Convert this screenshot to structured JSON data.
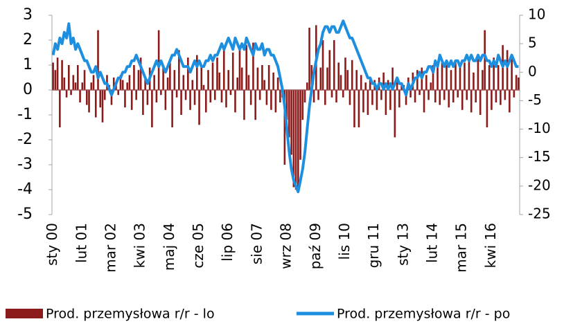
{
  "chart_data": {
    "type": "bar_line",
    "categories": [
      "sty 00",
      null,
      null,
      null,
      null,
      null,
      null,
      null,
      null,
      null,
      null,
      null,
      null,
      "lut 01",
      null,
      null,
      null,
      null,
      null,
      null,
      null,
      null,
      null,
      null,
      null,
      null,
      "mar 02",
      null,
      null,
      null,
      null,
      null,
      null,
      null,
      null,
      null,
      null,
      null,
      null,
      "kwi 03",
      null,
      null,
      null,
      null,
      null,
      null,
      null,
      null,
      null,
      null,
      null,
      null,
      "maj 04",
      null,
      null,
      null,
      null,
      null,
      null,
      null,
      null,
      null,
      null,
      null,
      null,
      "cze 05",
      null,
      null,
      null,
      null,
      null,
      null,
      null,
      null,
      null,
      null,
      null,
      null,
      "lip 06",
      null,
      null,
      null,
      null,
      null,
      null,
      null,
      null,
      null,
      null,
      null,
      null,
      "sie 07",
      null,
      null,
      null,
      null,
      null,
      null,
      null,
      null,
      null,
      null,
      null,
      null,
      "wrz 08",
      null,
      null,
      null,
      null,
      null,
      null,
      null,
      null,
      null,
      null,
      null,
      null,
      "paź 09",
      null,
      null,
      null,
      null,
      null,
      null,
      null,
      null,
      null,
      null,
      null,
      null,
      "lis 10",
      null,
      null,
      null,
      null,
      null,
      null,
      null,
      null,
      null,
      null,
      null,
      null,
      "gru 11",
      null,
      null,
      null,
      null,
      null,
      null,
      null,
      null,
      null,
      null,
      null,
      null,
      "sty 13",
      null,
      null,
      null,
      null,
      null,
      null,
      null,
      null,
      null,
      null,
      null,
      null,
      "lut 14",
      null,
      null,
      null,
      null,
      null,
      null,
      null,
      null,
      null,
      null,
      null,
      null,
      "mar 15",
      null,
      null,
      null,
      null,
      null,
      null,
      null,
      null,
      null,
      null,
      null,
      null,
      "kwi 16",
      null,
      null,
      null,
      null,
      null,
      null,
      null,
      null,
      null,
      null,
      null,
      null
    ],
    "series": [
      {
        "name": "Prod. przemysłowa r/r - lo",
        "color": "#8b1a1a",
        "kind": "bar",
        "values": [
          1.1,
          0.8,
          1.3,
          -1.5,
          1.2,
          0.5,
          -0.3,
          1.0,
          -0.2,
          0.6,
          0.3,
          1.0,
          -0.5,
          0.3,
          0.8,
          -0.6,
          -0.9,
          0.3,
          0.6,
          -1.1,
          2.4,
          -0.7,
          -1.3,
          -0.4,
          0.6,
          0.2,
          -0.6,
          0.5,
          0.3,
          -0.2,
          0.6,
          0.4,
          -0.7,
          0.3,
          0.6,
          -0.8,
          1.0,
          -0.4,
          0.8,
          1.3,
          -1.0,
          0.5,
          -0.6,
          0.9,
          -1.5,
          0.6,
          -0.5,
          2.4,
          -0.2,
          1.0,
          -0.8,
          0.5,
          1.2,
          -1.5,
          0.8,
          -0.3,
          1.6,
          -1.0,
          0.6,
          -0.4,
          1.3,
          -0.8,
          0.4,
          -0.6,
          1.4,
          -1.4,
          0.9,
          0.2,
          -0.9,
          0.8,
          -0.5,
          1.1,
          -0.4,
          1.3,
          0.7,
          -0.5,
          1.6,
          -0.7,
          0.8,
          -0.2,
          1.5,
          -0.9,
          0.5,
          1.7,
          0.9,
          -1.2,
          1.8,
          0.6,
          -0.6,
          1.9,
          -1.2,
          0.9,
          -0.4,
          1.0,
          0.4,
          -0.6,
          1.0,
          -0.8,
          0.7,
          -0.9,
          0.5,
          -0.5,
          -0.3,
          -3.0,
          -1.2,
          -1.9,
          -2.6,
          -3.9,
          -4.0,
          -3.9,
          -2.8,
          -1.2,
          -0.5,
          0.3,
          2.5,
          1.0,
          -0.5,
          2.6,
          -0.4,
          0.9,
          2.0,
          -0.6,
          0.9,
          1.6,
          -0.3,
          2.0,
          -0.5,
          1.1,
          0.6,
          -0.3,
          1.3,
          0.8,
          -0.6,
          1.2,
          -1.5,
          0.8,
          -1.5,
          0.6,
          -0.9,
          0.3,
          -1.0,
          0.5,
          -0.6,
          0.4,
          -0.8,
          0.5,
          -0.4,
          0.7,
          -1.0,
          0.4,
          -0.8,
          0.9,
          -1.9,
          0.4,
          -0.7,
          0.3,
          0.2,
          -0.6,
          0.5,
          -0.3,
          0.7,
          -0.5,
          0.8,
          -0.2,
          0.9,
          -0.9,
          0.6,
          -0.4,
          0.3,
          1.0,
          -0.5,
          0.9,
          -0.6,
          1.1,
          -0.4,
          1.0,
          -0.7,
          0.8,
          -0.5,
          1.2,
          -0.3,
          0.9,
          -0.8,
          1.1,
          -0.4,
          1.2,
          -0.9,
          0.7,
          -0.5,
          1.3,
          -1.0,
          0.8,
          2.4,
          -1.5,
          1.0,
          -0.8,
          1.3,
          -0.5,
          1.0,
          -0.6,
          1.8,
          -0.4,
          1.6,
          -0.9,
          1.4,
          -0.3,
          0.6,
          0.5
        ]
      },
      {
        "name": "Prod. przemysłowa r/r - po",
        "color": "#1e8fdf",
        "kind": "line",
        "axis": "y2",
        "values": [
          3,
          5,
          4,
          6,
          5,
          7,
          6,
          8.5,
          5,
          6,
          4,
          5,
          4,
          3,
          2,
          2,
          1,
          0,
          0,
          1,
          -1,
          0,
          -1,
          -2,
          -2,
          -3,
          -4,
          -3,
          -2,
          -1,
          -1,
          0,
          0,
          1,
          1,
          2,
          2,
          3,
          2,
          1,
          0,
          -1,
          -2,
          -1,
          0,
          1,
          2,
          1,
          2,
          1,
          0,
          1,
          2,
          3,
          3,
          4,
          3,
          2,
          1,
          1,
          1,
          0,
          1,
          2,
          1,
          2,
          1,
          1,
          2,
          2,
          3,
          2,
          3,
          3,
          4,
          5,
          4,
          5,
          6,
          5,
          4,
          6,
          5,
          4,
          5,
          4,
          6,
          5,
          4,
          3,
          5,
          4,
          4,
          5,
          3,
          4,
          4,
          3,
          3,
          2,
          1,
          -1,
          -3,
          -6,
          -10,
          -14,
          -17,
          -19,
          -20,
          -21,
          -19,
          -17,
          -14,
          -10,
          -6,
          -3,
          0,
          2,
          4,
          5,
          7,
          8,
          8,
          7,
          8,
          8,
          7,
          7,
          8,
          9,
          8,
          7,
          6,
          6,
          5,
          4,
          3,
          2,
          1,
          0,
          -1,
          -1,
          -2,
          -2,
          -3,
          -2,
          -2,
          -3,
          -2,
          -3,
          -2,
          -3,
          -2,
          -1,
          -2,
          -2,
          -3,
          -4,
          -2,
          -3,
          -2,
          -1,
          -1,
          0,
          -1,
          0,
          0,
          1,
          1,
          0,
          2,
          1,
          3,
          2,
          1,
          2,
          1,
          2,
          1,
          2,
          2,
          1,
          2,
          2,
          3,
          2,
          3,
          2,
          2,
          3,
          2,
          3,
          3,
          2,
          2,
          1,
          2,
          1,
          3,
          2,
          1,
          2,
          1,
          2,
          3,
          2,
          1,
          1
        ]
      }
    ],
    "ylim": [
      -5,
      3
    ],
    "yticks": [
      -5,
      -4,
      -3,
      -2,
      -1,
      0,
      1,
      2,
      3
    ],
    "y2lim": [
      -25,
      10
    ],
    "y2ticks": [
      -25,
      -20,
      -15,
      -10,
      -5,
      0,
      5,
      10
    ]
  }
}
